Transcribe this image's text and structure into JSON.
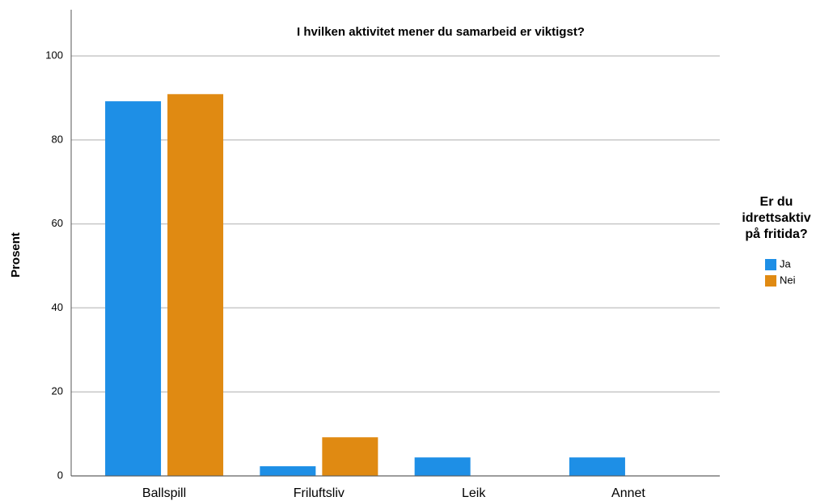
{
  "chart_data": {
    "type": "bar",
    "title": "I hvilken aktivitet mener du samarbeid er viktigst?",
    "ylabel": "Prosent",
    "categories": [
      "Ballspill",
      "Friluftsliv",
      "Leik",
      "Annet"
    ],
    "series": [
      {
        "name": "Ja",
        "color": "#1e8fe6",
        "values": [
          89.2,
          2.3,
          4.4,
          4.4
        ]
      },
      {
        "name": "Nei",
        "color": "#e08a12",
        "values": [
          90.9,
          9.2,
          0,
          0
        ]
      }
    ],
    "legend_title": [
      "Er du",
      "idrettsaktiv",
      "på fritida?"
    ],
    "legend": "right",
    "ylim": [
      0,
      111
    ],
    "yticks": [
      0,
      20,
      40,
      60,
      80,
      100
    ],
    "grid": true
  }
}
